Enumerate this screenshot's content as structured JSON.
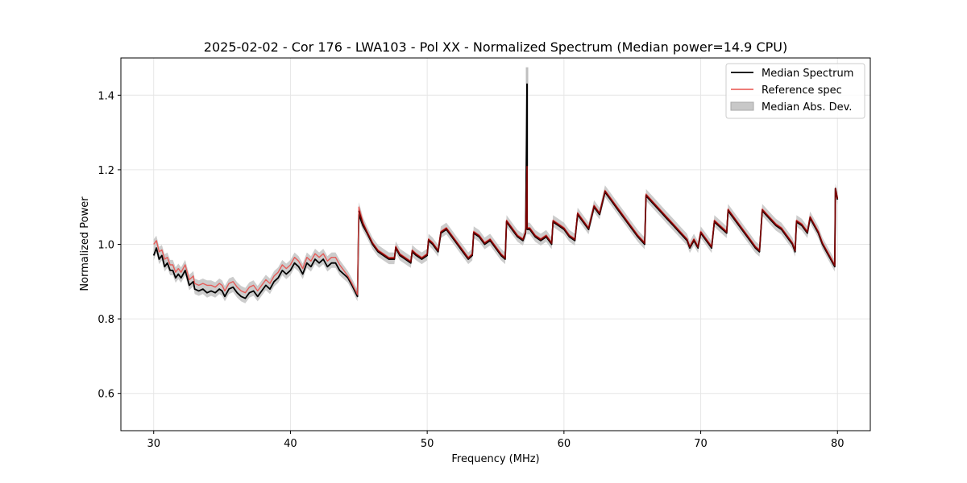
{
  "chart_data": {
    "type": "line",
    "title": "2025-02-02 - Cor 176 - LWA103 - Pol XX - Normalized Spectrum (Median power=14.9 CPU)",
    "xlabel": "Frequency (MHz)",
    "ylabel": "Normalized Power",
    "xlim": [
      27.6,
      82.4
    ],
    "ylim": [
      0.5,
      1.5
    ],
    "xticks": [
      30,
      40,
      50,
      60,
      70,
      80
    ],
    "xtick_labels": [
      "30",
      "40",
      "50",
      "60",
      "70",
      "80"
    ],
    "yticks": [
      0.6,
      0.8,
      1.0,
      1.2,
      1.4
    ],
    "ytick_labels": [
      "0.6",
      "0.8",
      "1.0",
      "1.2",
      "1.4"
    ],
    "grid": true,
    "legend_position": "top-right",
    "legend": [
      "Median Spectrum",
      "Reference spec",
      "Median Abs. Dev."
    ],
    "colors": {
      "median": "#000000",
      "reference": "#e8504c",
      "mad": "#bfbfbf",
      "overlap": "#7a0000"
    },
    "mad_width": 0.022,
    "series": [
      {
        "name": "Median Spectrum",
        "x": [
          30.0,
          30.2,
          30.4,
          30.6,
          30.8,
          31.0,
          31.2,
          31.4,
          31.6,
          31.8,
          32.0,
          32.3,
          32.6,
          32.9,
          33.0,
          33.3,
          33.6,
          33.9,
          34.2,
          34.5,
          34.8,
          35.0,
          35.2,
          35.5,
          35.8,
          36.1,
          36.4,
          36.7,
          37.0,
          37.3,
          37.6,
          37.9,
          38.2,
          38.5,
          38.8,
          39.1,
          39.4,
          39.7,
          40.0,
          40.3,
          40.6,
          40.9,
          41.2,
          41.5,
          41.8,
          42.1,
          42.4,
          42.7,
          43.0,
          43.3,
          43.6,
          43.9,
          44.2,
          44.5,
          44.9,
          45.0,
          45.3,
          45.6,
          46.0,
          46.4,
          46.8,
          47.2,
          47.6,
          47.7,
          48.0,
          48.4,
          48.8,
          48.9,
          49.2,
          49.6,
          50.0,
          50.1,
          50.4,
          50.8,
          51.0,
          51.4,
          51.8,
          52.2,
          52.6,
          53.0,
          53.3,
          53.4,
          53.8,
          54.2,
          54.6,
          55.0,
          55.4,
          55.7,
          55.8,
          56.2,
          56.6,
          57.0,
          57.2,
          57.3,
          57.31,
          57.5,
          57.9,
          58.3,
          58.7,
          59.1,
          59.2,
          59.6,
          60.0,
          60.4,
          60.8,
          61.0,
          61.4,
          61.8,
          62.2,
          62.6,
          63.0,
          63.4,
          63.8,
          64.2,
          64.6,
          65.0,
          65.4,
          65.9,
          66.0,
          66.5,
          67.0,
          67.5,
          68.0,
          68.5,
          69.0,
          69.2,
          69.5,
          69.8,
          70.0,
          70.4,
          70.8,
          71.0,
          71.3,
          71.6,
          71.9,
          72.0,
          72.4,
          72.8,
          73.2,
          73.6,
          74.0,
          74.3,
          74.5,
          75.0,
          75.5,
          75.9,
          76.3,
          76.7,
          76.9,
          77.0,
          77.4,
          77.8,
          78.0,
          78.3,
          78.6,
          78.9,
          79.2,
          79.5,
          79.8,
          79.85,
          80.0
        ],
        "values": [
          0.97,
          0.99,
          0.96,
          0.97,
          0.94,
          0.95,
          0.93,
          0.93,
          0.91,
          0.92,
          0.91,
          0.93,
          0.89,
          0.9,
          0.88,
          0.875,
          0.88,
          0.87,
          0.875,
          0.87,
          0.88,
          0.875,
          0.86,
          0.88,
          0.885,
          0.87,
          0.86,
          0.855,
          0.87,
          0.875,
          0.86,
          0.875,
          0.89,
          0.88,
          0.9,
          0.91,
          0.93,
          0.92,
          0.93,
          0.95,
          0.94,
          0.92,
          0.95,
          0.94,
          0.96,
          0.95,
          0.96,
          0.94,
          0.95,
          0.95,
          0.93,
          0.92,
          0.91,
          0.89,
          0.86,
          1.08,
          1.05,
          1.03,
          1.0,
          0.98,
          0.97,
          0.96,
          0.96,
          0.99,
          0.97,
          0.96,
          0.95,
          0.98,
          0.97,
          0.96,
          0.97,
          1.01,
          1.0,
          0.98,
          1.03,
          1.04,
          1.02,
          1.0,
          0.98,
          0.96,
          0.97,
          1.03,
          1.02,
          1.0,
          1.01,
          0.99,
          0.97,
          0.96,
          1.06,
          1.04,
          1.02,
          1.01,
          1.03,
          1.43,
          1.04,
          1.04,
          1.02,
          1.01,
          1.02,
          1.0,
          1.06,
          1.05,
          1.04,
          1.02,
          1.01,
          1.08,
          1.06,
          1.04,
          1.1,
          1.08,
          1.14,
          1.12,
          1.1,
          1.08,
          1.06,
          1.04,
          1.02,
          1.0,
          1.13,
          1.11,
          1.09,
          1.07,
          1.05,
          1.03,
          1.01,
          0.99,
          1.01,
          0.99,
          1.03,
          1.01,
          0.99,
          1.06,
          1.05,
          1.04,
          1.03,
          1.09,
          1.07,
          1.05,
          1.03,
          1.01,
          0.99,
          0.98,
          1.09,
          1.07,
          1.05,
          1.04,
          1.02,
          1.0,
          0.98,
          1.06,
          1.05,
          1.03,
          1.07,
          1.05,
          1.03,
          1.0,
          0.98,
          0.96,
          0.94,
          1.15,
          1.12
        ]
      },
      {
        "name": "Reference spec",
        "x": [
          30.0,
          30.2,
          30.4,
          30.6,
          30.8,
          31.0,
          31.2,
          31.4,
          31.6,
          31.8,
          32.0,
          32.3,
          32.6,
          32.9,
          33.0,
          33.3,
          33.6,
          33.9,
          34.2,
          34.5,
          34.8,
          35.0,
          35.2,
          35.5,
          35.8,
          36.1,
          36.4,
          36.7,
          37.0,
          37.3,
          37.6,
          37.9,
          38.2,
          38.5,
          38.8,
          39.1,
          39.4,
          39.7,
          40.0,
          40.3,
          40.6,
          40.9,
          41.2,
          41.5,
          41.8,
          42.1,
          42.4,
          42.7,
          43.0,
          43.3,
          43.6,
          43.9,
          44.2,
          44.5,
          44.9,
          45.0,
          45.3,
          45.6,
          46.0,
          46.4,
          46.8,
          47.2,
          47.6,
          47.7,
          48.0,
          48.4,
          48.8,
          48.9,
          49.2,
          49.6,
          50.0,
          50.1,
          50.4,
          50.8,
          51.0,
          51.4,
          51.8,
          52.2,
          52.6,
          53.0,
          53.3,
          53.4,
          53.8,
          54.2,
          54.6,
          55.0,
          55.4,
          55.7,
          55.8,
          56.2,
          56.6,
          57.0,
          57.2,
          57.3,
          57.31,
          57.5,
          57.9,
          58.3,
          58.7,
          59.1,
          59.2,
          59.6,
          60.0,
          60.4,
          60.8,
          61.0,
          61.4,
          61.8,
          62.2,
          62.6,
          63.0,
          63.4,
          63.8,
          64.2,
          64.6,
          65.0,
          65.4,
          65.9,
          66.0,
          66.5,
          67.0,
          67.5,
          68.0,
          68.5,
          69.0,
          69.2,
          69.5,
          69.8,
          70.0,
          70.4,
          70.8,
          71.0,
          71.3,
          71.6,
          71.9,
          72.0,
          72.4,
          72.8,
          73.2,
          73.6,
          74.0,
          74.3,
          74.5,
          75.0,
          75.5,
          75.9,
          76.3,
          76.7,
          76.9,
          77.0,
          77.4,
          77.8,
          78.0,
          78.3,
          78.6,
          78.9,
          79.2,
          79.5,
          79.8,
          79.85,
          80.0
        ],
        "values": [
          1.0,
          1.01,
          0.98,
          0.985,
          0.96,
          0.965,
          0.945,
          0.945,
          0.925,
          0.935,
          0.925,
          0.945,
          0.905,
          0.915,
          0.895,
          0.89,
          0.895,
          0.89,
          0.89,
          0.885,
          0.895,
          0.89,
          0.875,
          0.895,
          0.9,
          0.885,
          0.875,
          0.87,
          0.885,
          0.89,
          0.875,
          0.89,
          0.905,
          0.895,
          0.915,
          0.925,
          0.945,
          0.935,
          0.945,
          0.965,
          0.955,
          0.935,
          0.965,
          0.955,
          0.975,
          0.965,
          0.975,
          0.955,
          0.965,
          0.965,
          0.945,
          0.93,
          0.915,
          0.895,
          0.865,
          1.1,
          1.06,
          1.035,
          1.005,
          0.985,
          0.975,
          0.965,
          0.965,
          0.995,
          0.975,
          0.965,
          0.955,
          0.985,
          0.975,
          0.965,
          0.975,
          1.015,
          1.005,
          0.985,
          1.035,
          1.045,
          1.025,
          1.005,
          0.985,
          0.965,
          0.975,
          1.035,
          1.025,
          1.005,
          1.015,
          0.995,
          0.975,
          0.965,
          1.065,
          1.045,
          1.025,
          1.015,
          1.035,
          1.21,
          1.045,
          1.045,
          1.025,
          1.015,
          1.025,
          1.005,
          1.065,
          1.055,
          1.045,
          1.025,
          1.015,
          1.085,
          1.065,
          1.045,
          1.105,
          1.085,
          1.145,
          1.125,
          1.105,
          1.085,
          1.065,
          1.045,
          1.025,
          1.005,
          1.135,
          1.115,
          1.095,
          1.075,
          1.055,
          1.035,
          1.015,
          0.995,
          1.015,
          0.995,
          1.035,
          1.015,
          0.995,
          1.065,
          1.055,
          1.045,
          1.035,
          1.095,
          1.075,
          1.055,
          1.035,
          1.015,
          0.995,
          0.985,
          1.095,
          1.075,
          1.055,
          1.045,
          1.025,
          1.005,
          0.985,
          1.065,
          1.055,
          1.035,
          1.075,
          1.055,
          1.035,
          1.005,
          0.985,
          0.965,
          0.945,
          1.15,
          1.125
        ]
      }
    ]
  }
}
